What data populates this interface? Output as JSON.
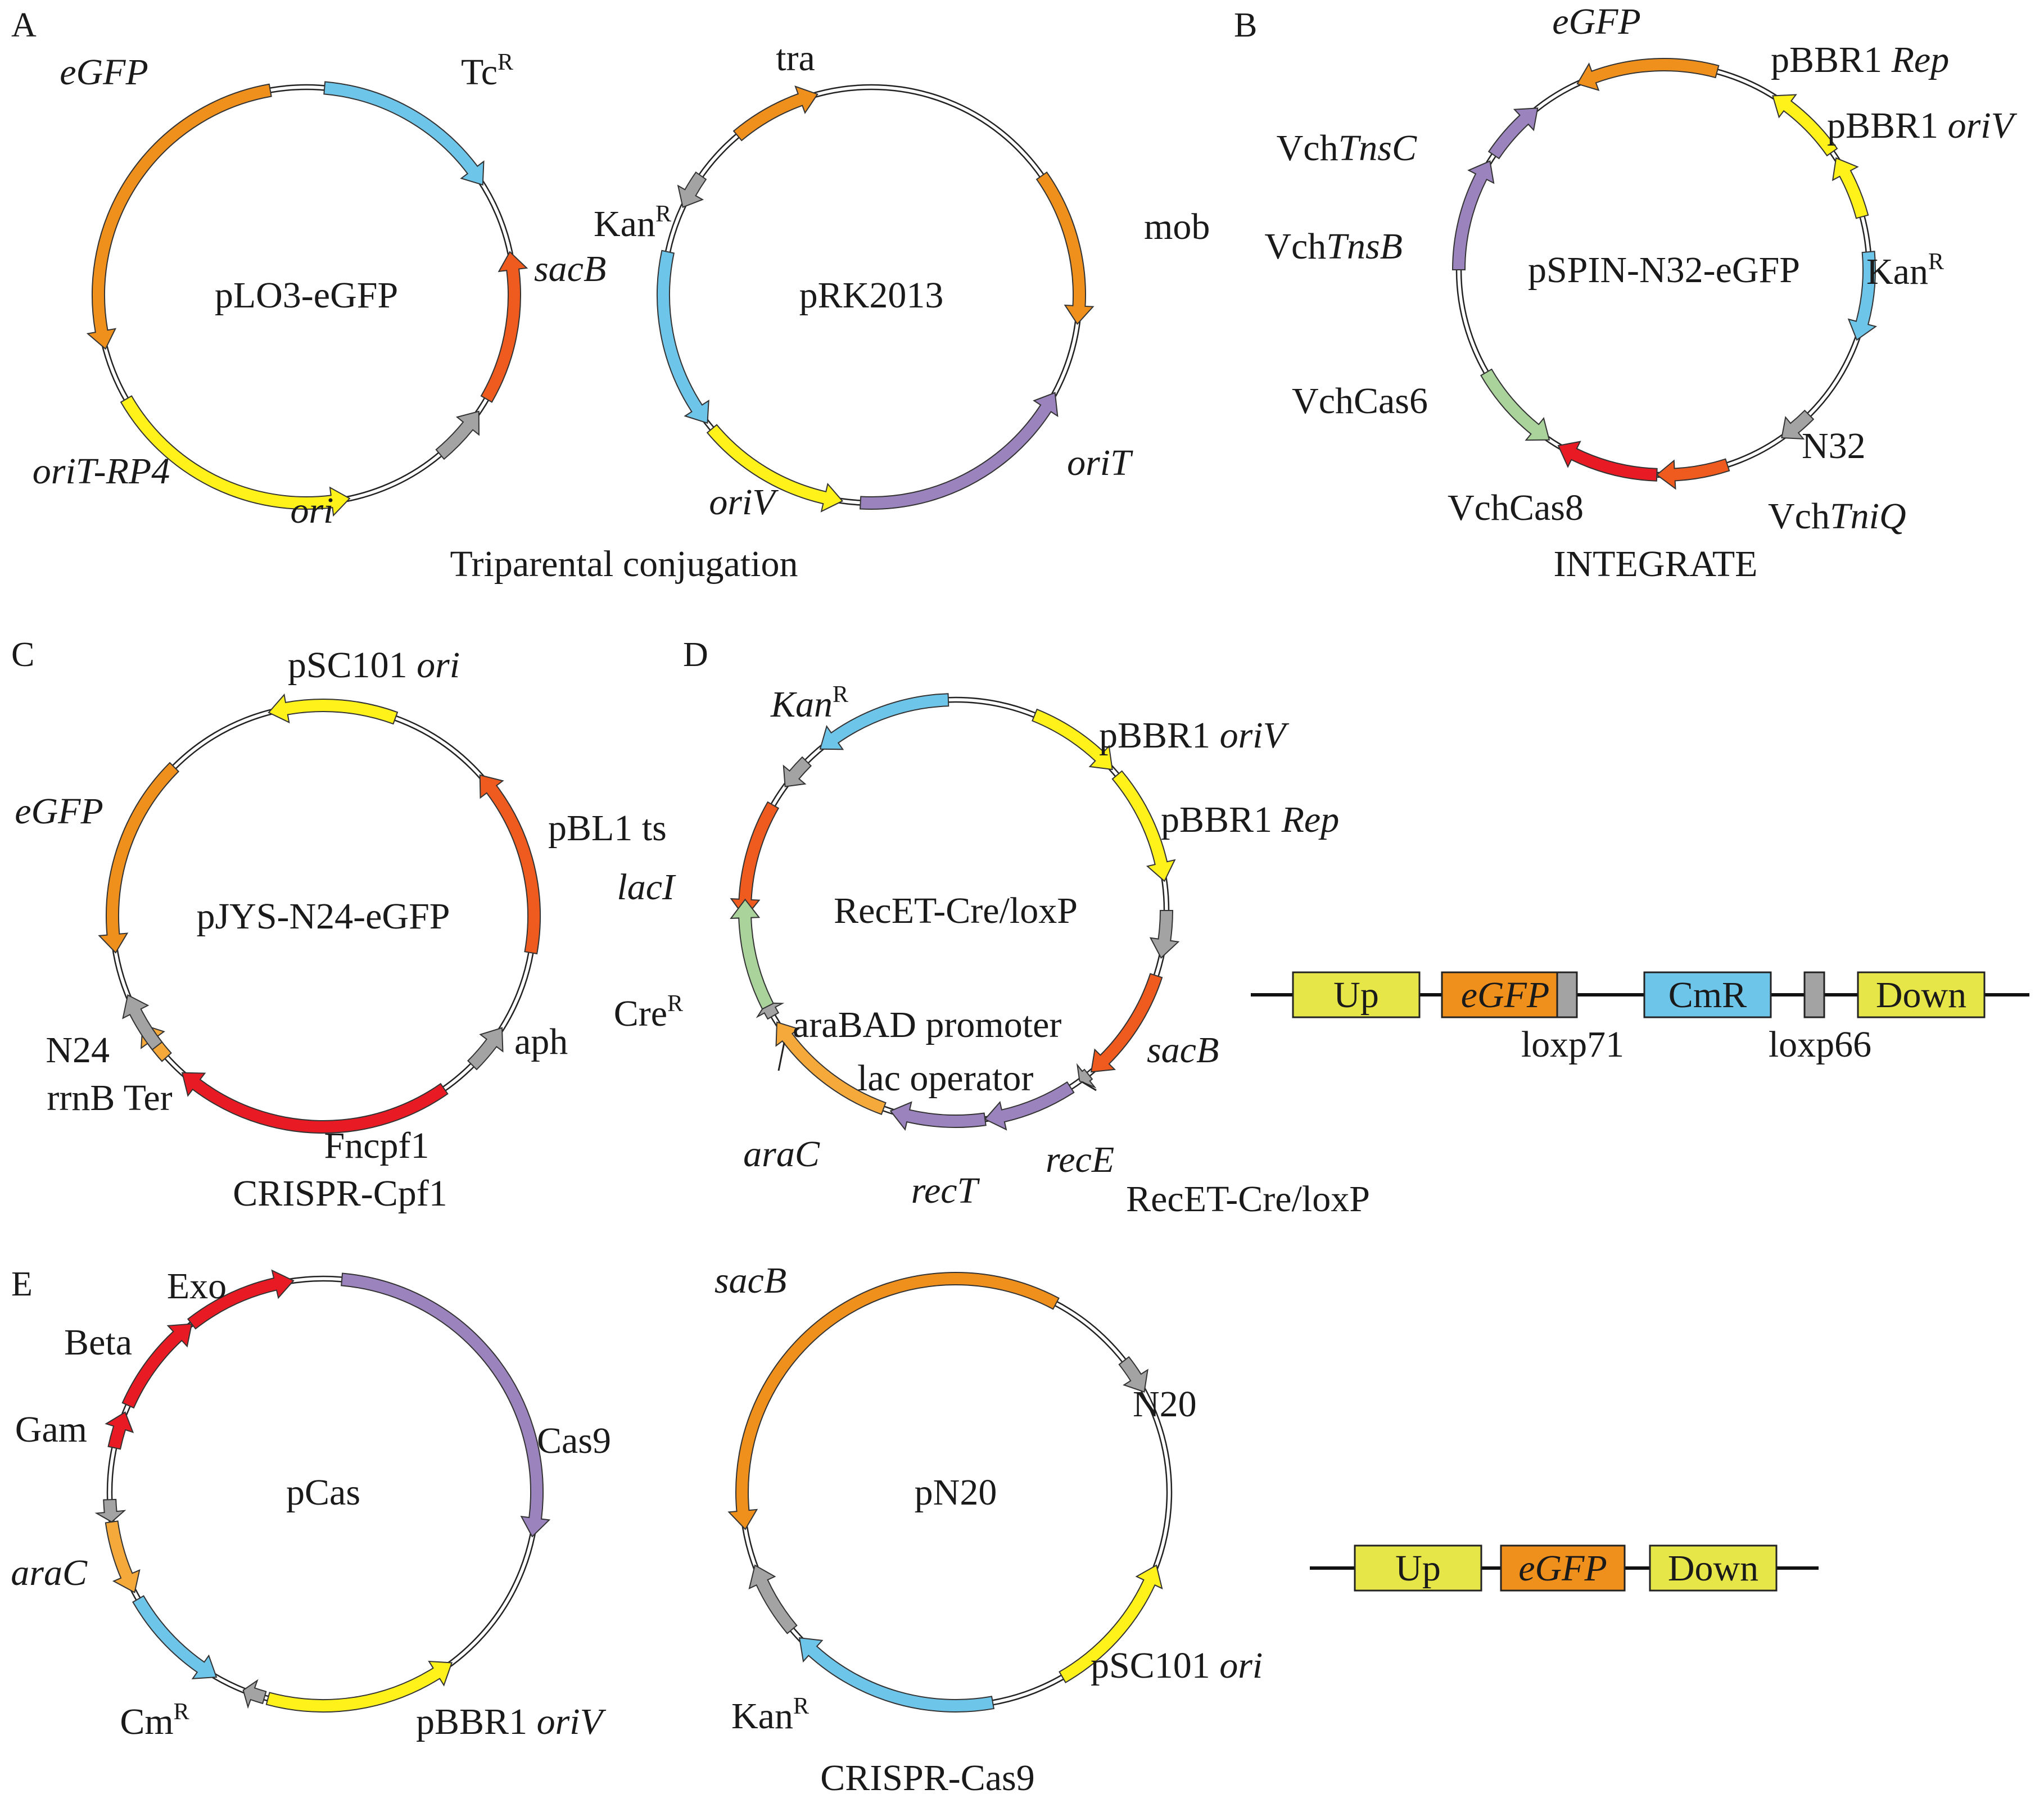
{
  "colors": {
    "orange": "#f0901c",
    "blue": "#6ec5ea",
    "yellow": "#fff21a",
    "darkorange": "#ef5a1e",
    "gray": "#a3a3a3",
    "purple": "#9b84bd",
    "red": "#e81b24",
    "green": "#a9d39a",
    "lightorange": "#f6a93b",
    "boxyellow": "#e6e649"
  },
  "panels": [
    {
      "id": "A",
      "label": "A"
    },
    {
      "id": "B",
      "label": "B"
    },
    {
      "id": "C",
      "label": "C"
    },
    {
      "id": "D",
      "label": "D"
    },
    {
      "id": "E",
      "label": "E"
    }
  ],
  "captions": {
    "A": "Triparental conjugation",
    "B": "INTEGRATE",
    "C": "CRISPR-Cpf1",
    "D": "RecET-Cre/loxP",
    "E": "CRISPR-Cas9"
  },
  "plasmids": [
    {
      "name": "pLO3-eGFP",
      "features": [
        {
          "id": "egfp",
          "color": "orange",
          "from": -10,
          "to": -105,
          "label": "eGFP",
          "italic": true
        },
        {
          "id": "tc",
          "color": "blue",
          "from": 5,
          "to": 58,
          "label": "Tc",
          "sup": "R"
        },
        {
          "id": "sacb",
          "color": "darkorange",
          "from": 120,
          "to": 78,
          "label": "sacB",
          "italic": true
        },
        {
          "id": "gray1",
          "color": "gray",
          "from": 140,
          "to": 124
        },
        {
          "id": "orit",
          "color": "yellow",
          "from": 240,
          "to": 168,
          "label": "oriT-RP4",
          "italic": true
        },
        {
          "id": "ori",
          "label": "ori",
          "italic": true
        }
      ]
    },
    {
      "name": "pRK2013",
      "features": [
        {
          "id": "tra",
          "color": "orange",
          "from": -40,
          "to": -15,
          "label": "tra"
        },
        {
          "id": "gray2",
          "color": "gray",
          "from": -55,
          "to": -65
        },
        {
          "id": "kan",
          "color": "blue",
          "from": -78,
          "to": -128,
          "label": "Kan",
          "sup": "R"
        },
        {
          "id": "mob",
          "color": "orange",
          "from": 55,
          "to": 98,
          "label": "mob"
        },
        {
          "id": "orit",
          "color": "purple",
          "from": 183,
          "to": 118,
          "label": "oriT",
          "italic": true
        },
        {
          "id": "oriv",
          "color": "yellow",
          "from": 230,
          "to": 188,
          "label": "oriV",
          "italic": true
        }
      ]
    },
    {
      "name": "pSPIN-N32-eGFP",
      "features": [
        {
          "id": "egfp",
          "color": "orange",
          "from": 15,
          "to": -25,
          "label": "eGFP",
          "italic": true
        },
        {
          "id": "rep",
          "color": "yellow",
          "from": 55,
          "to": 32,
          "label": "pBBR1 Rep",
          "labelIt": "Rep",
          "labelPre": "pBBR1 "
        },
        {
          "id": "oriv",
          "color": "yellow",
          "from": 75,
          "to": 57,
          "label": "pBBR1 oriV",
          "labelIt": "oriV",
          "labelPre": "pBBR1 "
        },
        {
          "id": "kan",
          "color": "blue",
          "from": 85,
          "to": 110,
          "label": "Kan",
          "sup": "R"
        },
        {
          "id": "n32",
          "color": "gray",
          "from": 135,
          "to": 145,
          "label": "N32"
        },
        {
          "id": "tniq",
          "color": "darkorange",
          "from": 162,
          "to": 182,
          "label": "VchTniQ",
          "labelPre": "Vch",
          "labelIt": "TniQ"
        },
        {
          "id": "cas8",
          "color": "red",
          "from": 182,
          "to": 211,
          "label": "VchCas8"
        },
        {
          "id": "cas6",
          "color": "green",
          "from": 240,
          "to": 214,
          "label": "VchCas6"
        },
        {
          "id": "tnsb",
          "color": "purple",
          "from": 270,
          "to": 302,
          "label": "VchTnsB",
          "labelPre": "Vch",
          "labelIt": "TnsB"
        },
        {
          "id": "tnsc",
          "color": "purple",
          "from": 304,
          "to": 322,
          "label": "VchTnsC",
          "labelPre": "Vch",
          "labelIt": "TnsC"
        }
      ]
    },
    {
      "name": "pJYS-N24-eGFP",
      "features": [
        {
          "id": "ori",
          "color": "yellow",
          "from": 20,
          "to": -15,
          "label": "pSC101 ori",
          "labelPre": "pSC101 ",
          "labelIt": "ori"
        },
        {
          "id": "egfp",
          "color": "orange",
          "from": -45,
          "to": -100,
          "label": "eGFP",
          "italic": true
        },
        {
          "id": "pbl1",
          "color": "darkorange",
          "from": 100,
          "to": 48,
          "label": "pBL1 ts"
        },
        {
          "id": "aph",
          "color": "gray",
          "from": 135,
          "to": 122,
          "label": "aph"
        },
        {
          "id": "cpf1",
          "color": "red",
          "from": 145,
          "to": 222,
          "label": "Fncpf1"
        },
        {
          "id": "rrnb",
          "color": "lightorange",
          "from": 228,
          "to": 239,
          "label": "rrnB Ter"
        },
        {
          "id": "n24",
          "color": "gray",
          "from": 232,
          "to": 248,
          "label": "N24"
        }
      ]
    },
    {
      "name": "RecET-Cre/loxP",
      "features": [
        {
          "id": "kan",
          "color": "blue",
          "from": -2,
          "to": -40,
          "label": "Kan",
          "sup": "R",
          "italic": true
        },
        {
          "id": "gray3",
          "color": "gray",
          "from": -45,
          "to": -54
        },
        {
          "id": "laci",
          "color": "darkorange",
          "from": -60,
          "to": -92,
          "label": "lacI",
          "italic": true
        },
        {
          "id": "oriv",
          "color": "yellow",
          "from": 22,
          "to": 48,
          "label": "pBBR1 oriV",
          "labelPre": "pBBR1 ",
          "labelIt": "oriV"
        },
        {
          "id": "rep",
          "color": "yellow",
          "from": 50,
          "to": 82,
          "label": "pBBR1 Rep",
          "labelPre": "pBBR1 ",
          "labelIt": "Rep"
        },
        {
          "id": "gray4",
          "color": "gray",
          "from": 90,
          "to": 103
        },
        {
          "id": "sacb",
          "color": "darkorange",
          "from": 108,
          "to": 140,
          "label": "sacB",
          "italic": true
        },
        {
          "id": "laco",
          "color": "gray",
          "from": 141,
          "to": 144
        },
        {
          "id": "rece",
          "color": "purple",
          "from": 147,
          "to": 172,
          "label": "recE",
          "italic": true
        },
        {
          "id": "rect",
          "color": "purple",
          "from": 172,
          "to": 198,
          "label": "recT",
          "italic": true
        },
        {
          "id": "arac",
          "color": "lightorange",
          "from": 200,
          "to": 238,
          "label": "araC",
          "italic": true
        },
        {
          "id": "arabad",
          "color": "gray",
          "from": 240,
          "to": 244
        },
        {
          "id": "cre",
          "color": "green",
          "from": 243,
          "to": 273,
          "label": "Cre",
          "sup": "R"
        }
      ],
      "annotations": {
        "arabad": "araBAD promoter",
        "laco": "lac operator"
      }
    },
    {
      "name": "pCas",
      "features": [
        {
          "id": "cas9",
          "color": "purple",
          "from": 5,
          "to": 102,
          "label": "Cas9"
        },
        {
          "id": "oriv",
          "color": "yellow",
          "from": 195,
          "to": 143,
          "label": "pBBR1 oriV",
          "labelPre": "pBBR1 ",
          "labelIt": "oriV"
        },
        {
          "id": "gray5",
          "color": "gray",
          "from": 196,
          "to": 202
        },
        {
          "id": "cm",
          "color": "blue",
          "from": 240,
          "to": 210,
          "label": "Cm",
          "sup": "R"
        },
        {
          "id": "arac",
          "color": "lightorange",
          "from": 262,
          "to": 242,
          "label": "araC",
          "italic": true
        },
        {
          "id": "gray6",
          "color": "gray",
          "from": 268,
          "to": 262
        },
        {
          "id": "gam",
          "color": "red",
          "from": 282,
          "to": 292,
          "label": "Gam"
        },
        {
          "id": "beta",
          "color": "red",
          "from": 294,
          "to": 322,
          "label": "Beta"
        },
        {
          "id": "exo",
          "color": "red",
          "from": 322,
          "to": 352,
          "label": "Exo"
        }
      ]
    },
    {
      "name": "pN20",
      "features": [
        {
          "id": "sacb",
          "color": "orange",
          "from": 28,
          "to": -100,
          "label": "sacB",
          "italic": true
        },
        {
          "id": "n20",
          "color": "gray",
          "from": 52,
          "to": 62,
          "label": "N20"
        },
        {
          "id": "ori",
          "color": "yellow",
          "from": 150,
          "to": 110,
          "label": "pSC101 ori",
          "labelPre": "pSC101 ",
          "labelIt": "ori"
        },
        {
          "id": "kan",
          "color": "blue",
          "from": 170,
          "to": 227,
          "label": "Kan",
          "sup": "R"
        },
        {
          "id": "gray7",
          "color": "gray",
          "from": 230,
          "to": 250
        }
      ]
    }
  ],
  "linear_maps": [
    {
      "id": "D",
      "boxes": [
        {
          "label": "Up",
          "color": "boxyellow"
        },
        {
          "label": "eGFP",
          "color": "orange",
          "italic": true
        },
        {
          "label": "",
          "color": "gray",
          "small": true,
          "below": "loxp71"
        },
        {
          "label": "CmR",
          "color": "blue"
        },
        {
          "label": "",
          "color": "gray",
          "small": true,
          "below": "loxp66"
        },
        {
          "label": "Down",
          "color": "boxyellow"
        }
      ]
    },
    {
      "id": "E",
      "boxes": [
        {
          "label": "Up",
          "color": "boxyellow"
        },
        {
          "label": "eGFP",
          "color": "orange",
          "italic": true
        },
        {
          "label": "Down",
          "color": "boxyellow"
        }
      ]
    }
  ]
}
